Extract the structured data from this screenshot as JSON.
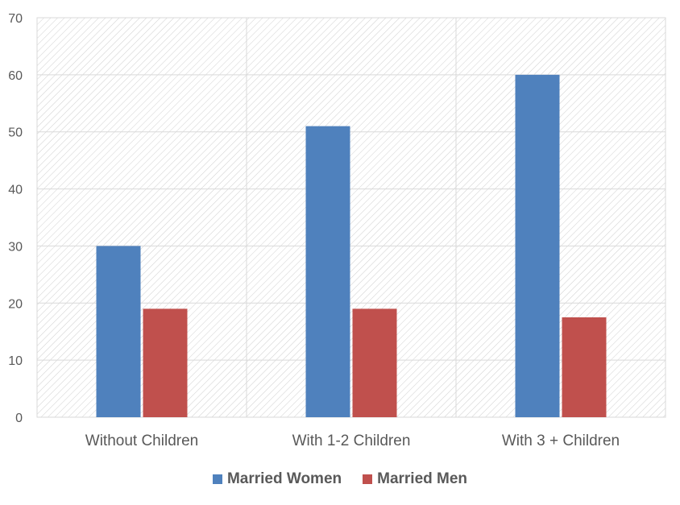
{
  "chart_data": {
    "type": "bar",
    "categories": [
      "Without Children",
      "With 1-2 Children",
      "With 3 + Children"
    ],
    "series": [
      {
        "name": "Married Women",
        "values": [
          30,
          51,
          60
        ],
        "color": "#4F81BD"
      },
      {
        "name": "Married Men",
        "values": [
          19,
          19,
          17.5
        ],
        "color": "#C0504D"
      }
    ],
    "ylim": [
      0,
      70
    ],
    "yticks": [
      "0",
      "10",
      "20",
      "30",
      "40",
      "50",
      "60",
      "70"
    ],
    "grid": true,
    "legend": "bottom"
  }
}
